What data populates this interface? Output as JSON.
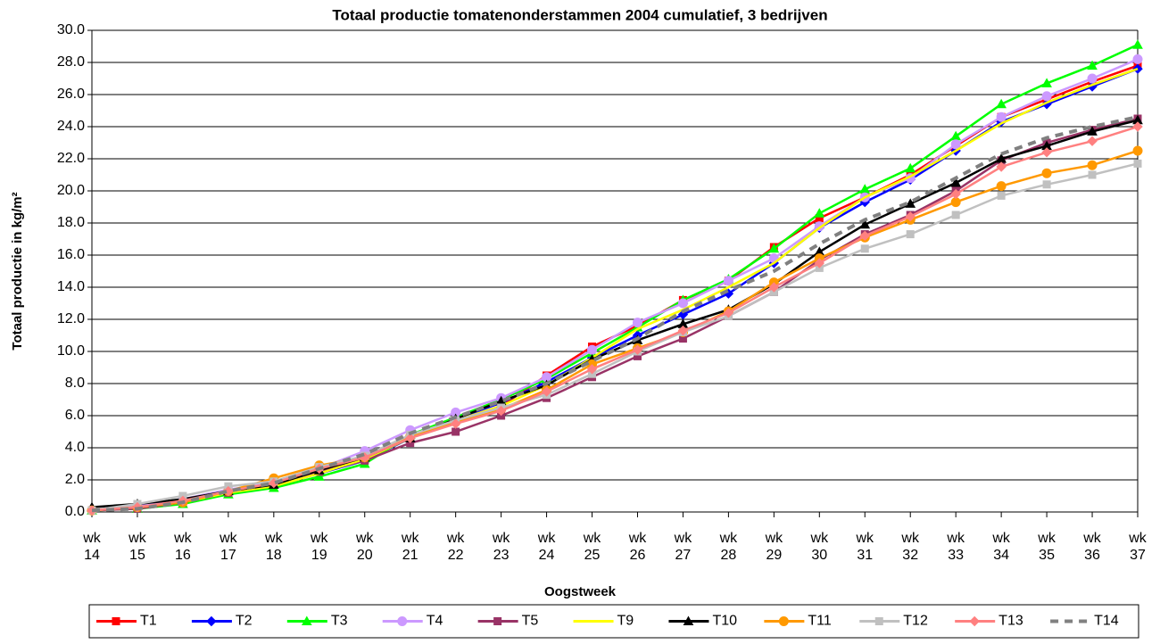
{
  "chart_data": {
    "type": "line",
    "title": "Totaal productie tomatenonderstammen 2004 cumulatief, 3 bedrijven",
    "x_label": "Oogstweek",
    "y_label": "Totaal productie in kg/m²",
    "categories": [
      "wk 14",
      "wk 15",
      "wk 16",
      "wk 17",
      "wk 18",
      "wk 19",
      "wk 20",
      "wk 21",
      "wk 22",
      "wk 23",
      "wk 24",
      "wk 25",
      "wk 26",
      "wk 27",
      "wk 28",
      "wk 29",
      "wk 30",
      "wk 31",
      "wk 32",
      "wk 33",
      "wk 34",
      "wk 35",
      "wk 36",
      "wk 37"
    ],
    "ylim": [
      0,
      30
    ],
    "yticks": [
      {
        "value": 0,
        "label": "0.0"
      },
      {
        "value": 2,
        "label": "2.0"
      },
      {
        "value": 4,
        "label": "4.0"
      },
      {
        "value": 6,
        "label": "6.0"
      },
      {
        "value": 8,
        "label": "8.0"
      },
      {
        "value": 10,
        "label": "10.0"
      },
      {
        "value": 12,
        "label": "12.0"
      },
      {
        "value": 14,
        "label": "14.0"
      },
      {
        "value": 16,
        "label": "16.0"
      },
      {
        "value": 18,
        "label": "18.0"
      },
      {
        "value": 20,
        "label": "20.0"
      },
      {
        "value": 22,
        "label": "22.0"
      },
      {
        "value": 24,
        "label": "24.0"
      },
      {
        "value": 26,
        "label": "26.0"
      },
      {
        "value": 28,
        "label": "28.0"
      },
      {
        "value": 30,
        "label": "30.0"
      }
    ],
    "grid": true,
    "legend": "bottom",
    "series": [
      {
        "name": "T1",
        "color": "#ff0000",
        "marker": "square",
        "values": [
          0.1,
          0.3,
          0.7,
          1.3,
          1.7,
          2.6,
          3.3,
          4.7,
          5.7,
          6.6,
          8.5,
          10.3,
          11.6,
          13.2,
          14.4,
          16.5,
          18.3,
          19.6,
          21.0,
          22.8,
          24.6,
          25.7,
          26.8,
          27.8
        ]
      },
      {
        "name": "T2",
        "color": "#0000ff",
        "marker": "diamond",
        "values": [
          0.1,
          0.3,
          0.6,
          1.2,
          1.6,
          2.4,
          3.2,
          4.6,
          5.8,
          6.8,
          8.1,
          9.6,
          11.0,
          12.3,
          13.6,
          15.5,
          17.7,
          19.3,
          20.7,
          22.5,
          24.3,
          25.4,
          26.5,
          27.6
        ]
      },
      {
        "name": "T3",
        "color": "#00ff00",
        "marker": "triangle",
        "values": [
          0.1,
          0.2,
          0.5,
          1.1,
          1.5,
          2.2,
          3.0,
          4.8,
          5.9,
          7.0,
          8.3,
          9.9,
          11.5,
          13.2,
          14.5,
          16.4,
          18.6,
          20.1,
          21.4,
          23.4,
          25.4,
          26.7,
          27.8,
          29.1
        ]
      },
      {
        "name": "T4",
        "color": "#cc99ff",
        "marker": "circle",
        "values": [
          0.1,
          0.4,
          0.8,
          1.4,
          1.8,
          2.7,
          3.8,
          5.1,
          6.2,
          7.1,
          8.4,
          10.1,
          11.8,
          13.0,
          14.4,
          15.8,
          17.8,
          19.6,
          20.8,
          22.9,
          24.6,
          25.9,
          27.0,
          28.2
        ]
      },
      {
        "name": "T5",
        "color": "#993366",
        "marker": "square",
        "values": [
          0.1,
          0.2,
          0.6,
          1.2,
          1.7,
          2.5,
          3.2,
          4.3,
          5.0,
          6.0,
          7.1,
          8.4,
          9.7,
          10.8,
          12.2,
          13.7,
          15.7,
          17.3,
          18.5,
          20.0,
          21.9,
          23.0,
          23.8,
          24.5
        ]
      },
      {
        "name": "T9",
        "color": "#ffff00",
        "marker": "none",
        "values": [
          0.1,
          0.3,
          0.6,
          1.2,
          1.6,
          2.4,
          3.3,
          4.6,
          5.7,
          6.6,
          7.9,
          9.6,
          11.4,
          12.6,
          14.0,
          15.5,
          17.7,
          19.6,
          20.9,
          22.5,
          24.2,
          25.5,
          26.6,
          27.6
        ]
      },
      {
        "name": "T10",
        "color": "#000000",
        "marker": "triangle",
        "values": [
          0.3,
          0.5,
          0.8,
          1.3,
          1.7,
          2.6,
          3.4,
          4.6,
          5.8,
          6.9,
          7.9,
          9.5,
          10.7,
          11.7,
          12.6,
          14.2,
          16.2,
          17.9,
          19.2,
          20.5,
          22.0,
          22.8,
          23.7,
          24.4
        ]
      },
      {
        "name": "T11",
        "color": "#ff9900",
        "marker": "circle",
        "values": [
          0.1,
          0.3,
          0.6,
          1.3,
          2.1,
          2.9,
          3.4,
          4.7,
          5.6,
          6.4,
          7.6,
          9.2,
          10.2,
          11.2,
          12.5,
          14.3,
          15.8,
          17.1,
          18.2,
          19.3,
          20.3,
          21.1,
          21.6,
          22.5
        ]
      },
      {
        "name": "T12",
        "color": "#c0c0c0",
        "marker": "square",
        "values": [
          0.1,
          0.5,
          1.0,
          1.6,
          1.9,
          2.8,
          3.5,
          4.8,
          5.7,
          6.5,
          7.3,
          8.6,
          10.0,
          11.2,
          12.2,
          13.7,
          15.2,
          16.4,
          17.3,
          18.5,
          19.7,
          20.4,
          21.0,
          21.7
        ]
      },
      {
        "name": "T13",
        "color": "#ff8080",
        "marker": "diamond",
        "values": [
          0.1,
          0.3,
          0.7,
          1.3,
          1.8,
          2.7,
          3.4,
          4.6,
          5.5,
          6.3,
          7.5,
          8.9,
          10.1,
          11.3,
          12.4,
          14.0,
          15.5,
          17.2,
          18.4,
          19.8,
          21.5,
          22.4,
          23.1,
          24.0
        ]
      },
      {
        "name": "T14",
        "color": "#808080",
        "marker": "none",
        "dash": true,
        "values": [
          0.1,
          0.2,
          0.6,
          1.3,
          1.8,
          2.7,
          3.6,
          4.9,
          5.9,
          6.9,
          8.0,
          9.4,
          10.8,
          12.5,
          13.8,
          15.0,
          16.7,
          18.2,
          19.3,
          20.8,
          22.3,
          23.3,
          24.0,
          24.6
        ]
      }
    ]
  }
}
